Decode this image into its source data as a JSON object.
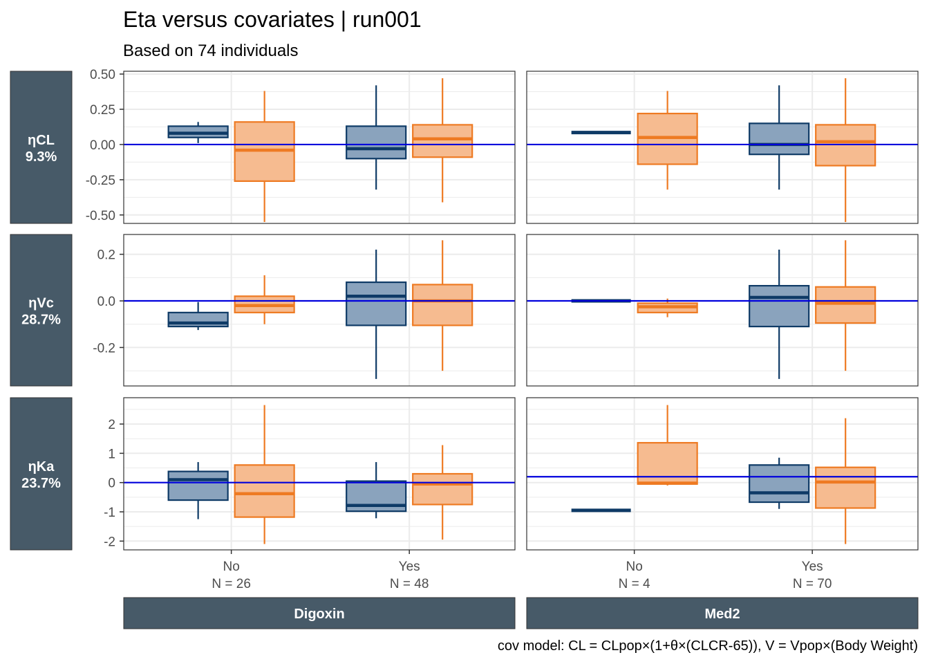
{
  "title": "Eta versus covariates | run001",
  "subtitle": "Based on 74 individuals",
  "caption": "cov model: CL = CLpop×(1+θ×(CLCR-65)), V = Vpop×(Body Weight)",
  "colors": {
    "strip": "#475a68",
    "group1_line": "#0e3a66",
    "group1_fill": "#8aa3bd",
    "group2_line": "#ee7a22",
    "group2_fill": "#f6bb90",
    "ref_line": "#0000dd",
    "grid": "#ebebeb",
    "panel_border": "#333333"
  },
  "chart_data": {
    "type": "boxplot",
    "row_strips": [
      {
        "name": "ηCL",
        "shrinkage": "9.3%"
      },
      {
        "name": "ηVc",
        "shrinkage": "28.7%"
      },
      {
        "name": "ηKa",
        "shrinkage": "23.7%"
      }
    ],
    "col_strips": [
      "Digoxin",
      "Med2"
    ],
    "rows": [
      {
        "ylim": [
          -0.56,
          0.52
        ],
        "yticks": [
          "0.50",
          "0.25",
          "0.00",
          "-0.25",
          "-0.50"
        ],
        "ytick_values": [
          0.5,
          0.25,
          0,
          -0.25,
          -0.5
        ]
      },
      {
        "ylim": [
          -0.365,
          0.285
        ],
        "yticks": [
          "0.2",
          "0.0",
          "-0.2"
        ],
        "ytick_values": [
          0.2,
          0,
          -0.2
        ]
      },
      {
        "ylim": [
          -2.3,
          2.9
        ],
        "yticks": [
          "2",
          "1",
          "0",
          "-1",
          "-2"
        ],
        "ytick_values": [
          2,
          1,
          0,
          -1,
          -2
        ]
      }
    ],
    "columns": [
      {
        "categories": [
          "No",
          "Yes"
        ],
        "counts": [
          "N = 26",
          "N = 48"
        ]
      },
      {
        "categories": [
          "No",
          "Yes"
        ],
        "counts": [
          "N = 4",
          "N = 70"
        ]
      }
    ],
    "ref_lines": [
      [
        0.0,
        0.0
      ],
      [
        0.0,
        0.0
      ],
      [
        0.0,
        0.2
      ]
    ],
    "panels": [
      {
        "row": 0,
        "col": 0,
        "boxes": [
          {
            "category": "No",
            "group": 1,
            "min": 0.01,
            "q1": 0.05,
            "median": 0.08,
            "q3": 0.13,
            "max": 0.16
          },
          {
            "category": "No",
            "group": 2,
            "min": -0.55,
            "q1": -0.26,
            "median": -0.04,
            "q3": 0.16,
            "max": 0.38
          },
          {
            "category": "Yes",
            "group": 1,
            "min": -0.32,
            "q1": -0.1,
            "median": -0.03,
            "q3": 0.13,
            "max": 0.42
          },
          {
            "category": "Yes",
            "group": 2,
            "min": -0.41,
            "q1": -0.09,
            "median": 0.04,
            "q3": 0.14,
            "max": 0.47
          }
        ]
      },
      {
        "row": 0,
        "col": 1,
        "boxes": [
          {
            "category": "No",
            "group": 1,
            "min": 0.085,
            "q1": 0.085,
            "median": 0.085,
            "q3": 0.085,
            "max": 0.085
          },
          {
            "category": "No",
            "group": 2,
            "min": -0.32,
            "q1": -0.14,
            "median": 0.05,
            "q3": 0.22,
            "max": 0.38
          },
          {
            "category": "Yes",
            "group": 1,
            "min": -0.32,
            "q1": -0.07,
            "median": 0.0,
            "q3": 0.15,
            "max": 0.42
          },
          {
            "category": "Yes",
            "group": 2,
            "min": -0.55,
            "q1": -0.15,
            "median": 0.02,
            "q3": 0.14,
            "max": 0.47
          }
        ]
      },
      {
        "row": 1,
        "col": 0,
        "boxes": [
          {
            "category": "No",
            "group": 1,
            "min": -0.125,
            "q1": -0.11,
            "median": -0.095,
            "q3": -0.05,
            "max": -0.005
          },
          {
            "category": "No",
            "group": 2,
            "min": -0.1,
            "q1": -0.05,
            "median": -0.02,
            "q3": 0.02,
            "max": 0.11
          },
          {
            "category": "Yes",
            "group": 1,
            "min": -0.335,
            "q1": -0.105,
            "median": 0.02,
            "q3": 0.08,
            "max": 0.22
          },
          {
            "category": "Yes",
            "group": 2,
            "min": -0.3,
            "q1": -0.105,
            "median": 0.0,
            "q3": 0.07,
            "max": 0.26
          }
        ]
      },
      {
        "row": 1,
        "col": 1,
        "boxes": [
          {
            "category": "No",
            "group": 1,
            "min": 0.0,
            "q1": 0.0,
            "median": 0.0,
            "q3": 0.0,
            "max": 0.0
          },
          {
            "category": "No",
            "group": 2,
            "min": -0.07,
            "q1": -0.05,
            "median": -0.025,
            "q3": -0.01,
            "max": 0.01
          },
          {
            "category": "Yes",
            "group": 1,
            "min": -0.335,
            "q1": -0.11,
            "median": 0.015,
            "q3": 0.065,
            "max": 0.22
          },
          {
            "category": "Yes",
            "group": 2,
            "min": -0.3,
            "q1": -0.095,
            "median": -0.01,
            "q3": 0.06,
            "max": 0.26
          }
        ]
      },
      {
        "row": 2,
        "col": 0,
        "boxes": [
          {
            "category": "No",
            "group": 1,
            "min": -1.25,
            "q1": -0.6,
            "median": 0.1,
            "q3": 0.38,
            "max": 0.7
          },
          {
            "category": "No",
            "group": 2,
            "min": -2.1,
            "q1": -1.18,
            "median": -0.38,
            "q3": 0.6,
            "max": 2.65
          },
          {
            "category": "Yes",
            "group": 1,
            "min": -1.22,
            "q1": -0.98,
            "median": -0.78,
            "q3": 0.05,
            "max": 0.7
          },
          {
            "category": "Yes",
            "group": 2,
            "min": -1.95,
            "q1": -0.75,
            "median": -0.05,
            "q3": 0.3,
            "max": 1.28
          }
        ]
      },
      {
        "row": 2,
        "col": 1,
        "boxes": [
          {
            "category": "No",
            "group": 1,
            "min": -0.95,
            "q1": -0.95,
            "median": -0.95,
            "q3": -0.95,
            "max": -0.95
          },
          {
            "category": "No",
            "group": 2,
            "min": -0.1,
            "q1": -0.05,
            "median": -0.02,
            "q3": 1.36,
            "max": 2.65
          },
          {
            "category": "Yes",
            "group": 1,
            "min": -0.9,
            "q1": -0.67,
            "median": -0.35,
            "q3": 0.6,
            "max": 0.85
          },
          {
            "category": "Yes",
            "group": 2,
            "min": -2.1,
            "q1": -0.87,
            "median": 0.02,
            "q3": 0.52,
            "max": 2.2
          }
        ]
      }
    ]
  }
}
